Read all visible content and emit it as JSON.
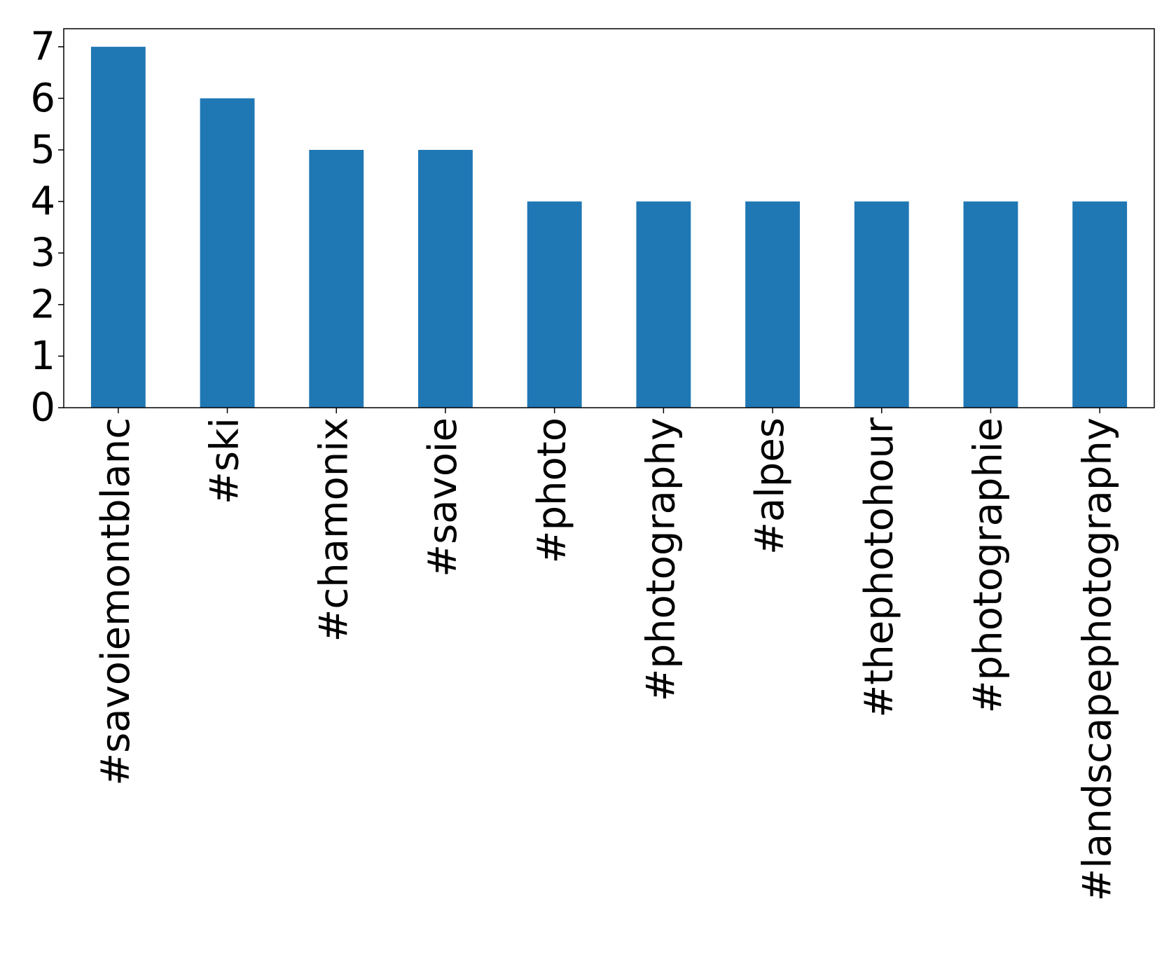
{
  "chart_data": {
    "type": "bar",
    "categories": [
      "#savoiemontblanc",
      "#ski",
      "#chamonix",
      "#savoie",
      "#photo",
      "#photography",
      "#alpes",
      "#thephotohour",
      "#photographie",
      "#landscapephotography"
    ],
    "values": [
      7,
      6,
      5,
      5,
      4,
      4,
      4,
      4,
      4,
      4
    ],
    "color": "#1f77b4",
    "ylim": [
      0,
      7.35
    ],
    "yticks": [
      0,
      1,
      2,
      3,
      4,
      5,
      6,
      7
    ],
    "grid": false
  }
}
